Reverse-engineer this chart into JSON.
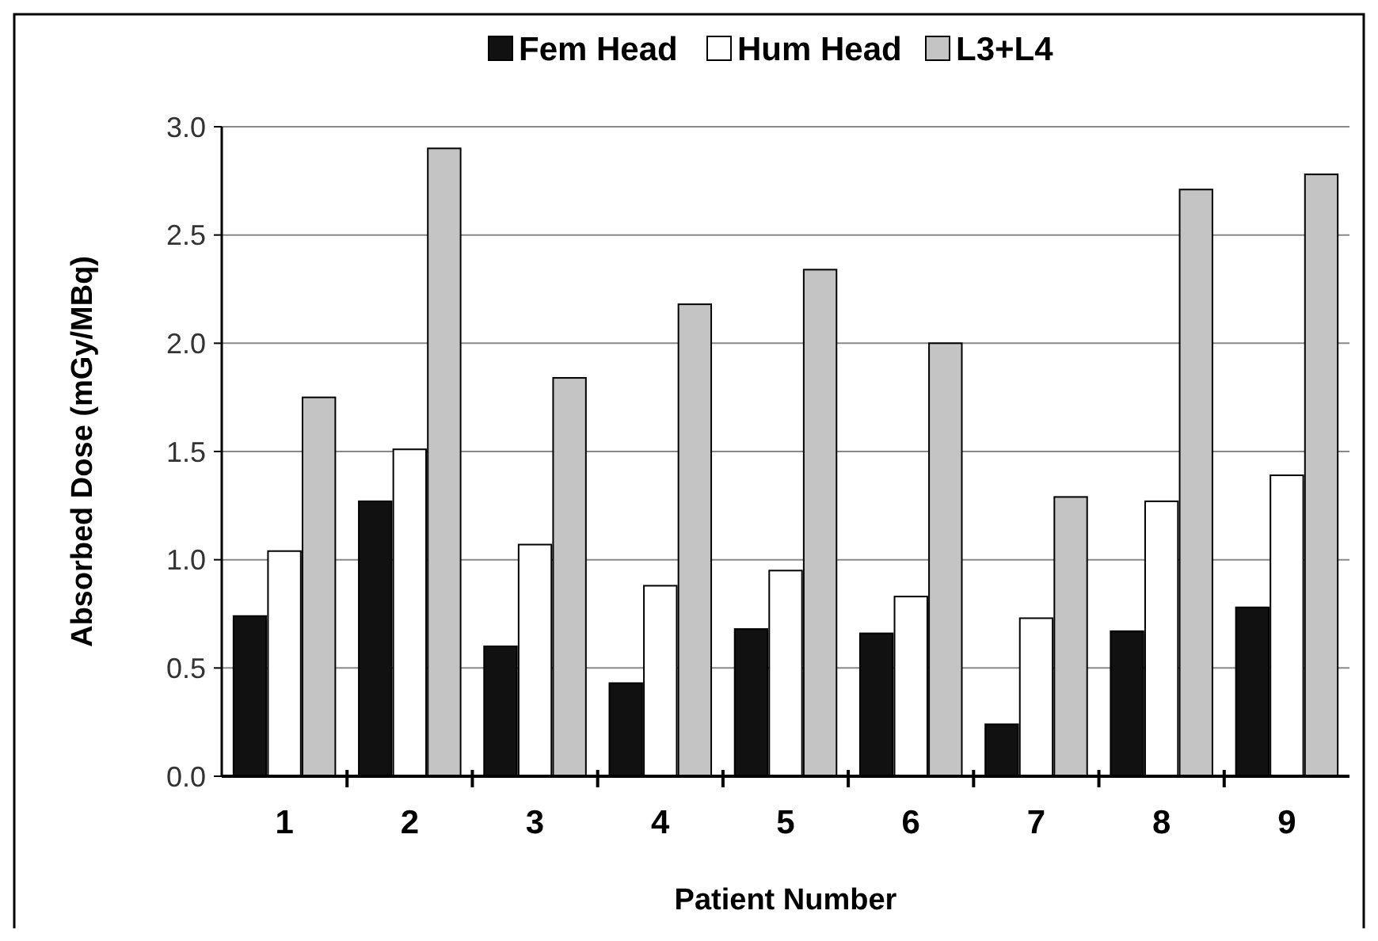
{
  "chart_data": {
    "type": "bar",
    "xlabel": "Patient Number",
    "ylabel": "Absorbed Dose (mGy/MBq)",
    "categories": [
      "1",
      "2",
      "3",
      "4",
      "5",
      "6",
      "7",
      "8",
      "9"
    ],
    "series": [
      {
        "name": "Fem Head",
        "color": "#111111",
        "values": [
          0.74,
          1.27,
          0.6,
          0.43,
          0.68,
          0.66,
          0.24,
          0.67,
          0.78
        ]
      },
      {
        "name": "Hum Head",
        "color": "#ffffff",
        "values": [
          1.04,
          1.51,
          1.07,
          0.88,
          0.95,
          0.83,
          0.73,
          1.27,
          1.39
        ]
      },
      {
        "name": "L3+L4",
        "color": "#c4c4c4",
        "values": [
          1.75,
          2.9,
          1.84,
          2.18,
          2.34,
          2.0,
          1.29,
          2.71,
          2.78
        ]
      }
    ],
    "ylim": [
      0,
      3
    ],
    "yticks": [
      {
        "value": 0,
        "label": "0.0"
      },
      {
        "value": 0.5,
        "label": "0.5"
      },
      {
        "value": 1,
        "label": "1.0"
      },
      {
        "value": 1.5,
        "label": "1.5"
      },
      {
        "value": 2,
        "label": "2.0"
      },
      {
        "value": 2.5,
        "label": "2.5"
      },
      {
        "value": 3,
        "label": "3.0"
      }
    ],
    "grid": "y",
    "legend": "top"
  }
}
